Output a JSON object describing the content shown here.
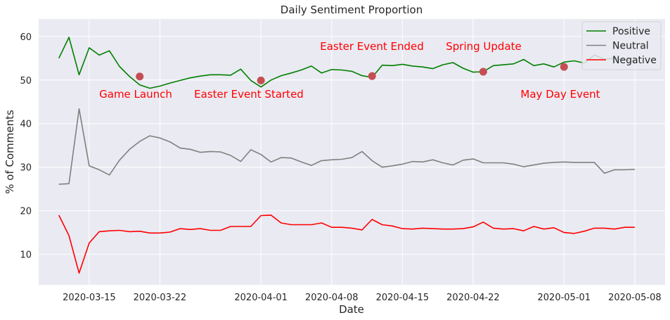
{
  "chart_data": {
    "type": "line",
    "title": "Daily Sentiment Proportion",
    "xlabel": "Date",
    "ylabel": "% of Comments",
    "ylim": [
      3,
      64
    ],
    "xlim": [
      "2020-03-10",
      "2020-05-11"
    ],
    "x_ticks": [
      "2020-03-15",
      "2020-03-22",
      "2020-04-01",
      "2020-04-08",
      "2020-04-15",
      "2020-04-22",
      "2020-05-01",
      "2020-05-08"
    ],
    "y_ticks": [
      10,
      20,
      30,
      40,
      50,
      60
    ],
    "grid": true,
    "legend_position": "top-right",
    "x": [
      "2020-03-12",
      "2020-03-13",
      "2020-03-14",
      "2020-03-15",
      "2020-03-16",
      "2020-03-17",
      "2020-03-18",
      "2020-03-19",
      "2020-03-20",
      "2020-03-21",
      "2020-03-22",
      "2020-03-23",
      "2020-03-24",
      "2020-03-25",
      "2020-03-26",
      "2020-03-27",
      "2020-03-28",
      "2020-03-29",
      "2020-03-30",
      "2020-03-31",
      "2020-04-01",
      "2020-04-02",
      "2020-04-03",
      "2020-04-04",
      "2020-04-05",
      "2020-04-06",
      "2020-04-07",
      "2020-04-08",
      "2020-04-09",
      "2020-04-10",
      "2020-04-11",
      "2020-04-12",
      "2020-04-13",
      "2020-04-14",
      "2020-04-15",
      "2020-04-16",
      "2020-04-17",
      "2020-04-18",
      "2020-04-19",
      "2020-04-20",
      "2020-04-21",
      "2020-04-22",
      "2020-04-23",
      "2020-04-24",
      "2020-04-25",
      "2020-04-26",
      "2020-04-27",
      "2020-04-28",
      "2020-04-29",
      "2020-04-30",
      "2020-05-01",
      "2020-05-02",
      "2020-05-03",
      "2020-05-04",
      "2020-05-05",
      "2020-05-06",
      "2020-05-07",
      "2020-05-08"
    ],
    "series": [
      {
        "name": "Positive",
        "color": "#008000",
        "values": [
          55.0,
          59.8,
          51.2,
          57.4,
          55.7,
          56.7,
          53.1,
          50.8,
          48.9,
          48.1,
          48.6,
          49.3,
          49.9,
          50.5,
          50.9,
          51.2,
          51.2,
          51.1,
          52.5,
          49.9,
          48.4,
          50.0,
          51.0,
          51.6,
          52.3,
          53.2,
          51.6,
          52.4,
          52.3,
          52.0,
          51.0,
          50.6,
          53.4,
          53.3,
          53.6,
          53.2,
          53.0,
          52.6,
          53.5,
          54.0,
          52.7,
          51.8,
          51.9,
          53.3,
          53.5,
          53.7,
          54.7,
          53.3,
          53.7,
          53.0,
          54.1,
          54.4,
          53.9,
          55.7,
          54.8,
          55.0,
          54.6,
          54.2
        ]
      },
      {
        "name": "Neutral",
        "color": "#808080",
        "values": [
          26.1,
          26.2,
          43.4,
          30.3,
          29.4,
          28.2,
          31.6,
          34.1,
          35.9,
          37.2,
          36.7,
          35.8,
          34.4,
          34.1,
          33.4,
          33.6,
          33.5,
          32.7,
          31.3,
          34.0,
          32.9,
          31.2,
          32.2,
          32.1,
          31.2,
          30.4,
          31.5,
          31.7,
          31.8,
          32.2,
          33.6,
          31.5,
          30.0,
          30.3,
          30.7,
          31.3,
          31.2,
          31.7,
          31.0,
          30.5,
          31.6,
          31.9,
          31.0,
          31.0,
          31.0,
          30.7,
          30.1,
          30.5,
          30.9,
          31.1,
          31.2,
          31.1,
          31.1,
          31.1,
          28.6,
          29.4,
          29.4,
          29.5
        ]
      },
      {
        "name": "Negative",
        "color": "#ff0000",
        "values": [
          19.0,
          14.3,
          5.7,
          12.6,
          15.2,
          15.4,
          15.5,
          15.2,
          15.3,
          14.9,
          14.9,
          15.1,
          15.9,
          15.7,
          15.9,
          15.5,
          15.5,
          16.4,
          16.4,
          16.4,
          18.9,
          19.0,
          17.2,
          16.8,
          16.8,
          16.8,
          17.2,
          16.2,
          16.2,
          16.0,
          15.6,
          18.0,
          16.8,
          16.5,
          15.9,
          15.8,
          16.0,
          15.9,
          15.8,
          15.8,
          15.9,
          16.3,
          17.4,
          16.0,
          15.8,
          15.9,
          15.4,
          16.4,
          15.8,
          16.1,
          15.0,
          14.8,
          15.3,
          16.0,
          16.0,
          15.8,
          16.2,
          16.2
        ]
      }
    ],
    "annotations": [
      {
        "text": "Game Launch",
        "date": "2020-03-20",
        "y": 50.8
      },
      {
        "text": "Easter Event Started",
        "date": "2020-04-01",
        "y": 49.9
      },
      {
        "text": "Easter Event Ended",
        "date": "2020-04-12",
        "y": 50.9
      },
      {
        "text": "Spring Update",
        "date": "2020-04-23",
        "y": 51.9
      },
      {
        "text": "May Day Event",
        "date": "2020-05-01",
        "y": 53.0
      }
    ]
  }
}
